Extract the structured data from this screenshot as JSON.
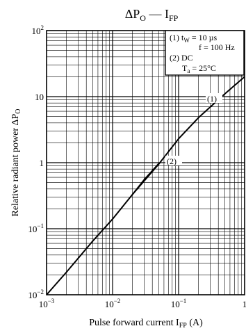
{
  "chart_data": {
    "type": "line",
    "title": "ΔP_O — I_FP",
    "xlabel": "Pulse forward current  I_FP  (A)",
    "ylabel": "Relative radiant power  ΔP_O",
    "x_scale": "log",
    "y_scale": "log",
    "xlim": [
      0.001,
      1
    ],
    "ylim": [
      0.01,
      100
    ],
    "grid": true,
    "x_ticks": [
      {
        "value": 0.001,
        "mantissa": "10",
        "exp": "−3"
      },
      {
        "value": 0.01,
        "mantissa": "10",
        "exp": "−2"
      },
      {
        "value": 0.1,
        "mantissa": "10",
        "exp": "−1"
      },
      {
        "value": 1,
        "mantissa": "1",
        "exp": ""
      }
    ],
    "y_ticks": [
      {
        "value": 0.01,
        "mantissa": "10",
        "exp": "−2"
      },
      {
        "value": 0.1,
        "mantissa": "10",
        "exp": "−1"
      },
      {
        "value": 1,
        "mantissa": "1",
        "exp": ""
      },
      {
        "value": 10,
        "mantissa": "10",
        "exp": ""
      },
      {
        "value": 100,
        "mantissa": "10",
        "exp": "2"
      }
    ],
    "legend": {
      "placement": "top-right",
      "lines": [
        "(1) t_W = 10 µs",
        "f = 100 Hz",
        "(2) DC",
        "T_a = 25°C"
      ]
    },
    "series": [
      {
        "name": "(1)",
        "x": [
          0.001,
          0.002,
          0.005,
          0.01,
          0.02,
          0.05,
          0.1,
          0.2,
          0.5,
          1
        ],
        "y": [
          0.01,
          0.022,
          0.065,
          0.14,
          0.33,
          0.95,
          2.3,
          4.8,
          11,
          20
        ]
      },
      {
        "name": "(2)",
        "x": [
          0.02,
          0.03,
          0.05
        ],
        "y": [
          0.33,
          0.55,
          0.97
        ]
      }
    ]
  }
}
